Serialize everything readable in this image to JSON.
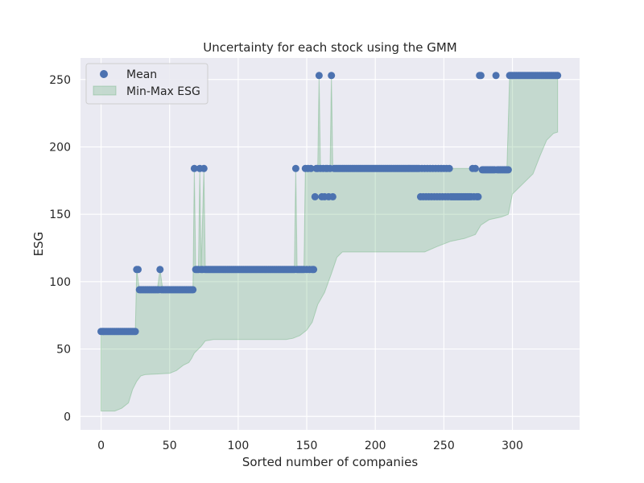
{
  "colors": {
    "background": "#eaeaf2",
    "grid": "#ffffff",
    "mean": "#4c72b0",
    "band_fill": "#55a868",
    "band_alpha": 0.25
  },
  "chart_data": {
    "type": "scatter",
    "title": "Uncertainty for each stock using the GMM",
    "xlabel": "Sorted number of companies",
    "ylabel": "ESG",
    "xlim": [
      -15,
      349
    ],
    "ylim": [
      -10,
      266
    ],
    "xticks": [
      0,
      50,
      100,
      150,
      200,
      250,
      300
    ],
    "yticks": [
      0,
      50,
      100,
      150,
      200,
      250
    ],
    "grid": true,
    "legend": {
      "position": "top-left",
      "entries": [
        {
          "label": "Mean",
          "kind": "marker"
        },
        {
          "label": "Min-Max ESG",
          "kind": "patch"
        }
      ]
    },
    "mean_segments": [
      {
        "from": 0,
        "to": 25,
        "value": 63
      },
      {
        "from": 26,
        "to": 27,
        "value": 109
      },
      {
        "from": 28,
        "to": 67,
        "value": 94
      },
      {
        "from": 68,
        "to": 155,
        "value": 109
      },
      {
        "from": 156,
        "to": 232,
        "value": 184
      },
      {
        "from": 233,
        "to": 275,
        "value": 163
      },
      {
        "from": 276,
        "to": 297,
        "value": 183
      },
      {
        "from": 298,
        "to": 333,
        "value": 253
      }
    ],
    "mean_overrides": [
      {
        "x": 43,
        "value": 109
      },
      {
        "x": 68,
        "value": 184
      },
      {
        "x": 72,
        "value": 184
      },
      {
        "x": 75,
        "value": 184
      },
      {
        "x": 142,
        "value": 184
      },
      {
        "x": 149,
        "value": 184
      },
      {
        "x": 151,
        "value": 184
      },
      {
        "x": 153,
        "value": 184
      },
      {
        "x": 156,
        "value": 163
      },
      {
        "x": 159,
        "value": 253
      },
      {
        "x": 161,
        "value": 163
      },
      {
        "x": 163,
        "value": 163
      },
      {
        "x": 166,
        "value": 163
      },
      {
        "x": 169,
        "value": 163
      },
      {
        "x": 168,
        "value": 253
      },
      {
        "x": 234,
        "value": 184
      },
      {
        "x": 236,
        "value": 184
      },
      {
        "x": 238,
        "value": 184
      },
      {
        "x": 240,
        "value": 184
      },
      {
        "x": 242,
        "value": 184
      },
      {
        "x": 244,
        "value": 184
      },
      {
        "x": 246,
        "value": 184
      },
      {
        "x": 248,
        "value": 184
      },
      {
        "x": 250,
        "value": 184
      },
      {
        "x": 252,
        "value": 184
      },
      {
        "x": 254,
        "value": 184
      },
      {
        "x": 271,
        "value": 184
      },
      {
        "x": 273,
        "value": 184
      },
      {
        "x": 276,
        "value": 253
      },
      {
        "x": 277,
        "value": 253
      },
      {
        "x": 288,
        "value": 253
      }
    ],
    "band_max": [
      [
        0,
        63
      ],
      [
        25,
        63
      ],
      [
        26,
        109
      ],
      [
        28,
        94
      ],
      [
        41,
        94
      ],
      [
        43,
        109
      ],
      [
        45,
        94
      ],
      [
        67,
        94
      ],
      [
        68,
        184
      ],
      [
        69,
        109
      ],
      [
        71,
        109
      ],
      [
        72,
        184
      ],
      [
        73,
        109
      ],
      [
        75,
        184
      ],
      [
        76,
        109
      ],
      [
        141,
        109
      ],
      [
        142,
        184
      ],
      [
        143,
        109
      ],
      [
        148,
        109
      ],
      [
        149,
        184
      ],
      [
        155,
        184
      ],
      [
        158,
        184
      ],
      [
        159,
        253
      ],
      [
        160,
        184
      ],
      [
        167,
        184
      ],
      [
        168,
        253
      ],
      [
        169,
        184
      ],
      [
        296,
        184
      ],
      [
        298,
        253
      ],
      [
        333,
        253
      ]
    ],
    "band_min": [
      [
        0,
        4
      ],
      [
        10,
        4
      ],
      [
        15,
        6
      ],
      [
        20,
        10
      ],
      [
        23,
        20
      ],
      [
        26,
        26
      ],
      [
        29,
        30
      ],
      [
        32,
        31
      ],
      [
        50,
        32
      ],
      [
        55,
        34
      ],
      [
        60,
        38
      ],
      [
        64,
        40
      ],
      [
        66,
        43
      ],
      [
        68,
        47
      ],
      [
        73,
        52
      ],
      [
        76,
        56
      ],
      [
        82,
        57
      ],
      [
        135,
        57
      ],
      [
        140,
        58
      ],
      [
        145,
        60
      ],
      [
        150,
        64
      ],
      [
        154,
        70
      ],
      [
        158,
        83
      ],
      [
        163,
        92
      ],
      [
        168,
        106
      ],
      [
        172,
        118
      ],
      [
        176,
        122
      ],
      [
        236,
        122
      ],
      [
        245,
        126
      ],
      [
        255,
        130
      ],
      [
        265,
        132
      ],
      [
        273,
        135
      ],
      [
        277,
        142
      ],
      [
        283,
        146
      ],
      [
        292,
        148
      ],
      [
        297,
        150
      ],
      [
        300,
        165
      ],
      [
        305,
        170
      ],
      [
        315,
        180
      ],
      [
        320,
        193
      ],
      [
        325,
        205
      ],
      [
        330,
        210
      ],
      [
        333,
        211
      ]
    ]
  }
}
